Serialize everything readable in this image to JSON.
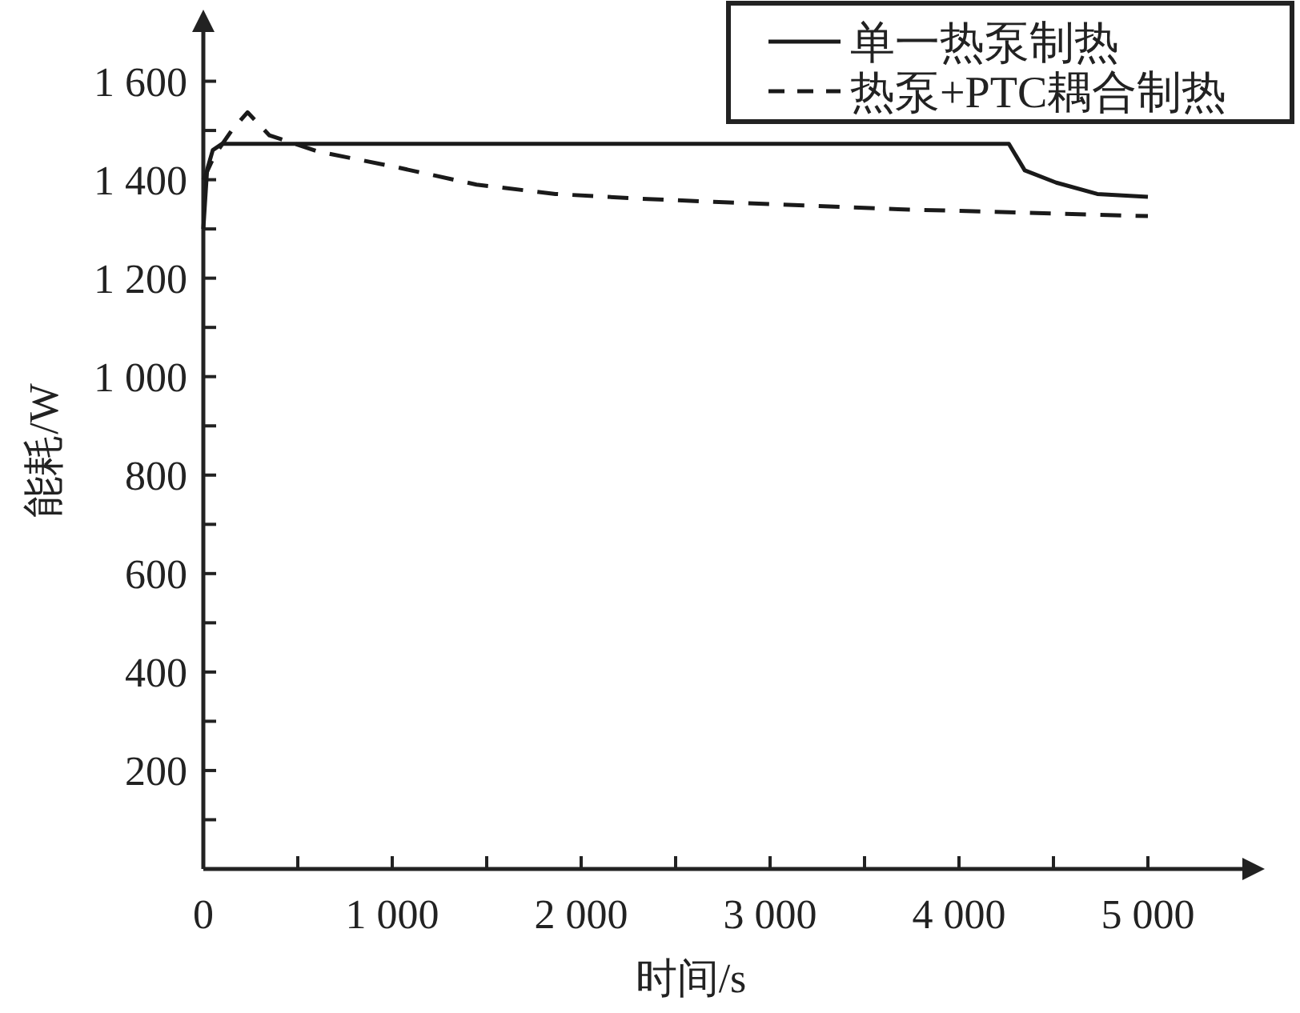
{
  "chart_data": {
    "type": "line",
    "xlabel": "时间/s",
    "ylabel": "能耗/W",
    "xlim": [
      0,
      5500
    ],
    "ylim": [
      0,
      1700
    ],
    "xticks": [
      0,
      {
        "value": 500,
        "label": null
      },
      {
        "value": 1000,
        "label": "1 000"
      },
      {
        "value": 1500,
        "label": null
      },
      {
        "value": 2000,
        "label": "2 000"
      },
      {
        "value": 2500,
        "label": null
      },
      {
        "value": 3000,
        "label": "3 000"
      },
      {
        "value": 3500,
        "label": null
      },
      {
        "value": 4000,
        "label": "4 000"
      },
      {
        "value": 4500,
        "label": null
      },
      {
        "value": 5000,
        "label": "5 000"
      }
    ],
    "yticks": [
      {
        "value": 100,
        "label": null
      },
      200,
      {
        "value": 300,
        "label": null
      },
      400,
      {
        "value": 500,
        "label": null
      },
      600,
      {
        "value": 700,
        "label": null
      },
      800,
      {
        "value": 900,
        "label": null
      },
      {
        "value": 1000,
        "label": "1 000"
      },
      {
        "value": 1100,
        "label": null
      },
      {
        "value": 1200,
        "label": "1 200"
      },
      {
        "value": 1300,
        "label": null
      },
      {
        "value": 1400,
        "label": "1 400"
      },
      {
        "value": 1500,
        "label": null
      },
      {
        "value": 1600,
        "label": "1 600"
      }
    ],
    "legend": "top right",
    "grid": false,
    "series": [
      {
        "name": "单一热泵制热",
        "color": "#1a1a1a",
        "line_style": "solid",
        "x": [
          0,
          20,
          50,
          100,
          4264,
          4348,
          4515,
          4732,
          5000
        ],
        "values": [
          1300,
          1420,
          1460,
          1473,
          1473,
          1419,
          1394,
          1371,
          1365
        ]
      },
      {
        "name": "热泵+PTC耦合制热",
        "color": "#1a1a1a",
        "line_style": "dashed",
        "x": [
          0,
          60,
          150,
          234,
          350,
          610,
          1028,
          1446,
          1864,
          2283,
          2702,
          3679,
          5000
        ],
        "values": [
          1400,
          1450,
          1500,
          1537,
          1490,
          1457,
          1425,
          1390,
          1371,
          1362,
          1355,
          1340,
          1326
        ]
      }
    ]
  }
}
